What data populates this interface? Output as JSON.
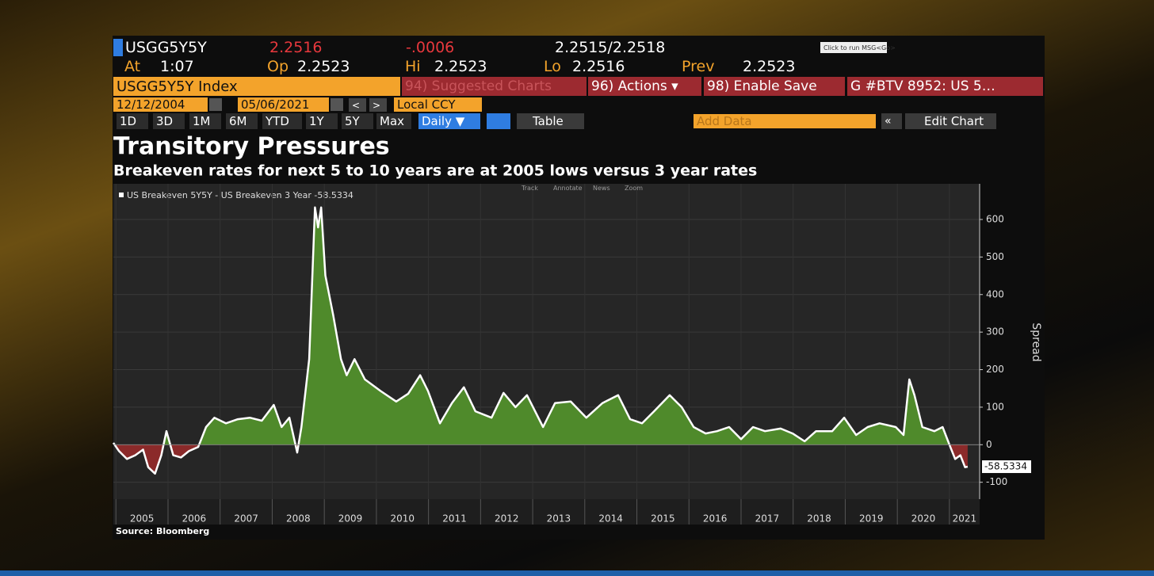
{
  "terminal": {
    "ticker": "USGG5Y5Y",
    "last": "2.2516",
    "change": "-.0006",
    "bid_ask": "2.2515/2.2518",
    "tooltip": "Click to run MSG<Go>",
    "quote": [
      {
        "label": "At",
        "value": "1:07"
      },
      {
        "label": "Op",
        "value": "2.2523"
      },
      {
        "label": "Hi",
        "value": "2.2523"
      },
      {
        "label": "Lo",
        "value": "2.2516"
      },
      {
        "label": "Prev",
        "value": "2.2523"
      }
    ],
    "security": "USGG5Y5Y Index",
    "menu": [
      "94) Suggested Charts",
      "96) Actions ▾",
      "98) Enable Save",
      "G #BTV 8952: US 5…"
    ],
    "start_date": "12/12/2004",
    "end_date": "05/06/2021",
    "currency": "Local CCY",
    "ranges": [
      "1D",
      "3D",
      "1M",
      "6M",
      "YTD",
      "1Y",
      "5Y",
      "Max"
    ],
    "frequency": "Daily ▼",
    "table": "Table",
    "add_data": "Add Data",
    "edit_chart": "Edit Chart",
    "chart_tools": [
      "Track",
      "Annotate",
      "News",
      "Zoom"
    ]
  },
  "chart_data": {
    "type": "area",
    "title": "Transitory Pressures",
    "subtitle": "Breakeven rates for next 5 to 10 years are at 2005 lows versus 3 year rates",
    "y_label": "Spread",
    "source": "Source: Bloomberg",
    "x": [
      2004.95,
      2005.06,
      2005.21,
      2005.37,
      2005.52,
      2005.62,
      2005.75,
      2005.87,
      2005.97,
      2006.1,
      2006.25,
      2006.4,
      2006.58,
      2006.73,
      2006.89,
      2007.11,
      2007.34,
      2007.57,
      2007.8,
      2008.03,
      2008.18,
      2008.33,
      2008.48,
      2008.56,
      2008.71,
      2008.82,
      2008.88,
      2008.94,
      2009.02,
      2009.17,
      2009.32,
      2009.43,
      2009.58,
      2009.78,
      2010.08,
      2010.38,
      2010.61,
      2010.84,
      2010.99,
      2011.22,
      2011.45,
      2011.68,
      2011.9,
      2012.21,
      2012.44,
      2012.67,
      2012.89,
      2013.2,
      2013.43,
      2013.73,
      2014.03,
      2014.34,
      2014.64,
      2014.87,
      2015.1,
      2015.33,
      2015.63,
      2015.86,
      2016.09,
      2016.32,
      2016.54,
      2016.77,
      2017.0,
      2017.23,
      2017.46,
      2017.76,
      2017.99,
      2018.22,
      2018.44,
      2018.75,
      2018.98,
      2019.21,
      2019.43,
      2019.66,
      2019.97,
      2020.12,
      2020.23,
      2020.33,
      2020.48,
      2020.71,
      2020.87,
      2021.0,
      2021.11,
      2021.21,
      2021.3,
      2021.35
    ],
    "series": [
      {
        "name": "US Breakeven 5Y5Y - US Breakeven 3 Year",
        "color": "#ffffff",
        "positive_color": "#4f8a2b",
        "negative_color": "#8b2a2a",
        "values": [
          5,
          -17,
          -38,
          -28,
          -13,
          -60,
          -77,
          -28,
          36,
          -28,
          -34,
          -17,
          -6,
          47,
          72,
          57,
          68,
          72,
          64,
          106,
          47,
          72,
          -21,
          47,
          228,
          632,
          579,
          632,
          451,
          345,
          228,
          185,
          228,
          174,
          143,
          115,
          136,
          185,
          143,
          57,
          111,
          153,
          89,
          72,
          138,
          100,
          132,
          47,
          111,
          115,
          72,
          111,
          132,
          68,
          57,
          89,
          132,
          100,
          47,
          30,
          36,
          47,
          15,
          47,
          36,
          43,
          30,
          9,
          36,
          36,
          72,
          26,
          47,
          57,
          47,
          26,
          174,
          132,
          47,
          36,
          47,
          0,
          -38,
          -28,
          -60,
          -58.5334
        ]
      }
    ],
    "xlim": [
      2004.95,
      2021.58
    ],
    "xticks": [
      2005,
      2006,
      2007,
      2008,
      2009,
      2010,
      2011,
      2012,
      2013,
      2014,
      2015,
      2016,
      2017,
      2018,
      2019,
      2020,
      2021
    ],
    "ylim": [
      -145,
      695
    ],
    "yticks": [
      -100,
      0,
      100,
      200,
      300,
      400,
      500,
      600
    ],
    "grid": true
  }
}
